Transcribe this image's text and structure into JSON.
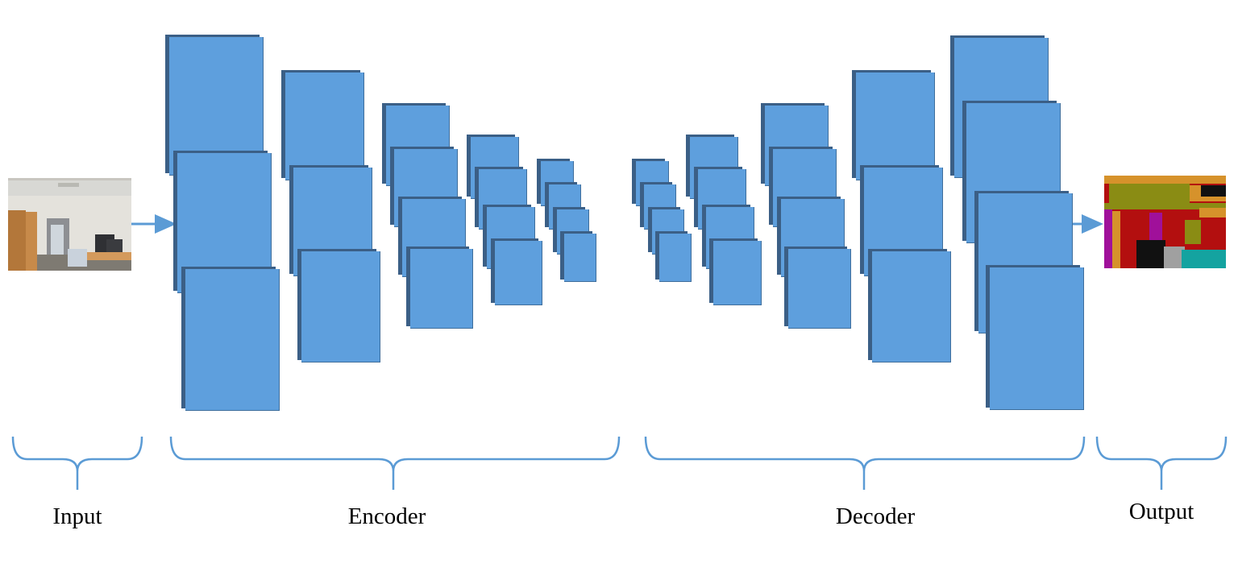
{
  "diagram": {
    "input_label": "Input",
    "encoder_label": "Encoder",
    "decoder_label": "Decoder",
    "output_label": "Output"
  },
  "colors": {
    "block_fill": "#5e9fdd",
    "block_shadow": "#3b5f86",
    "arrow": "#5b9bd5",
    "brace": "#5b9bd5"
  }
}
